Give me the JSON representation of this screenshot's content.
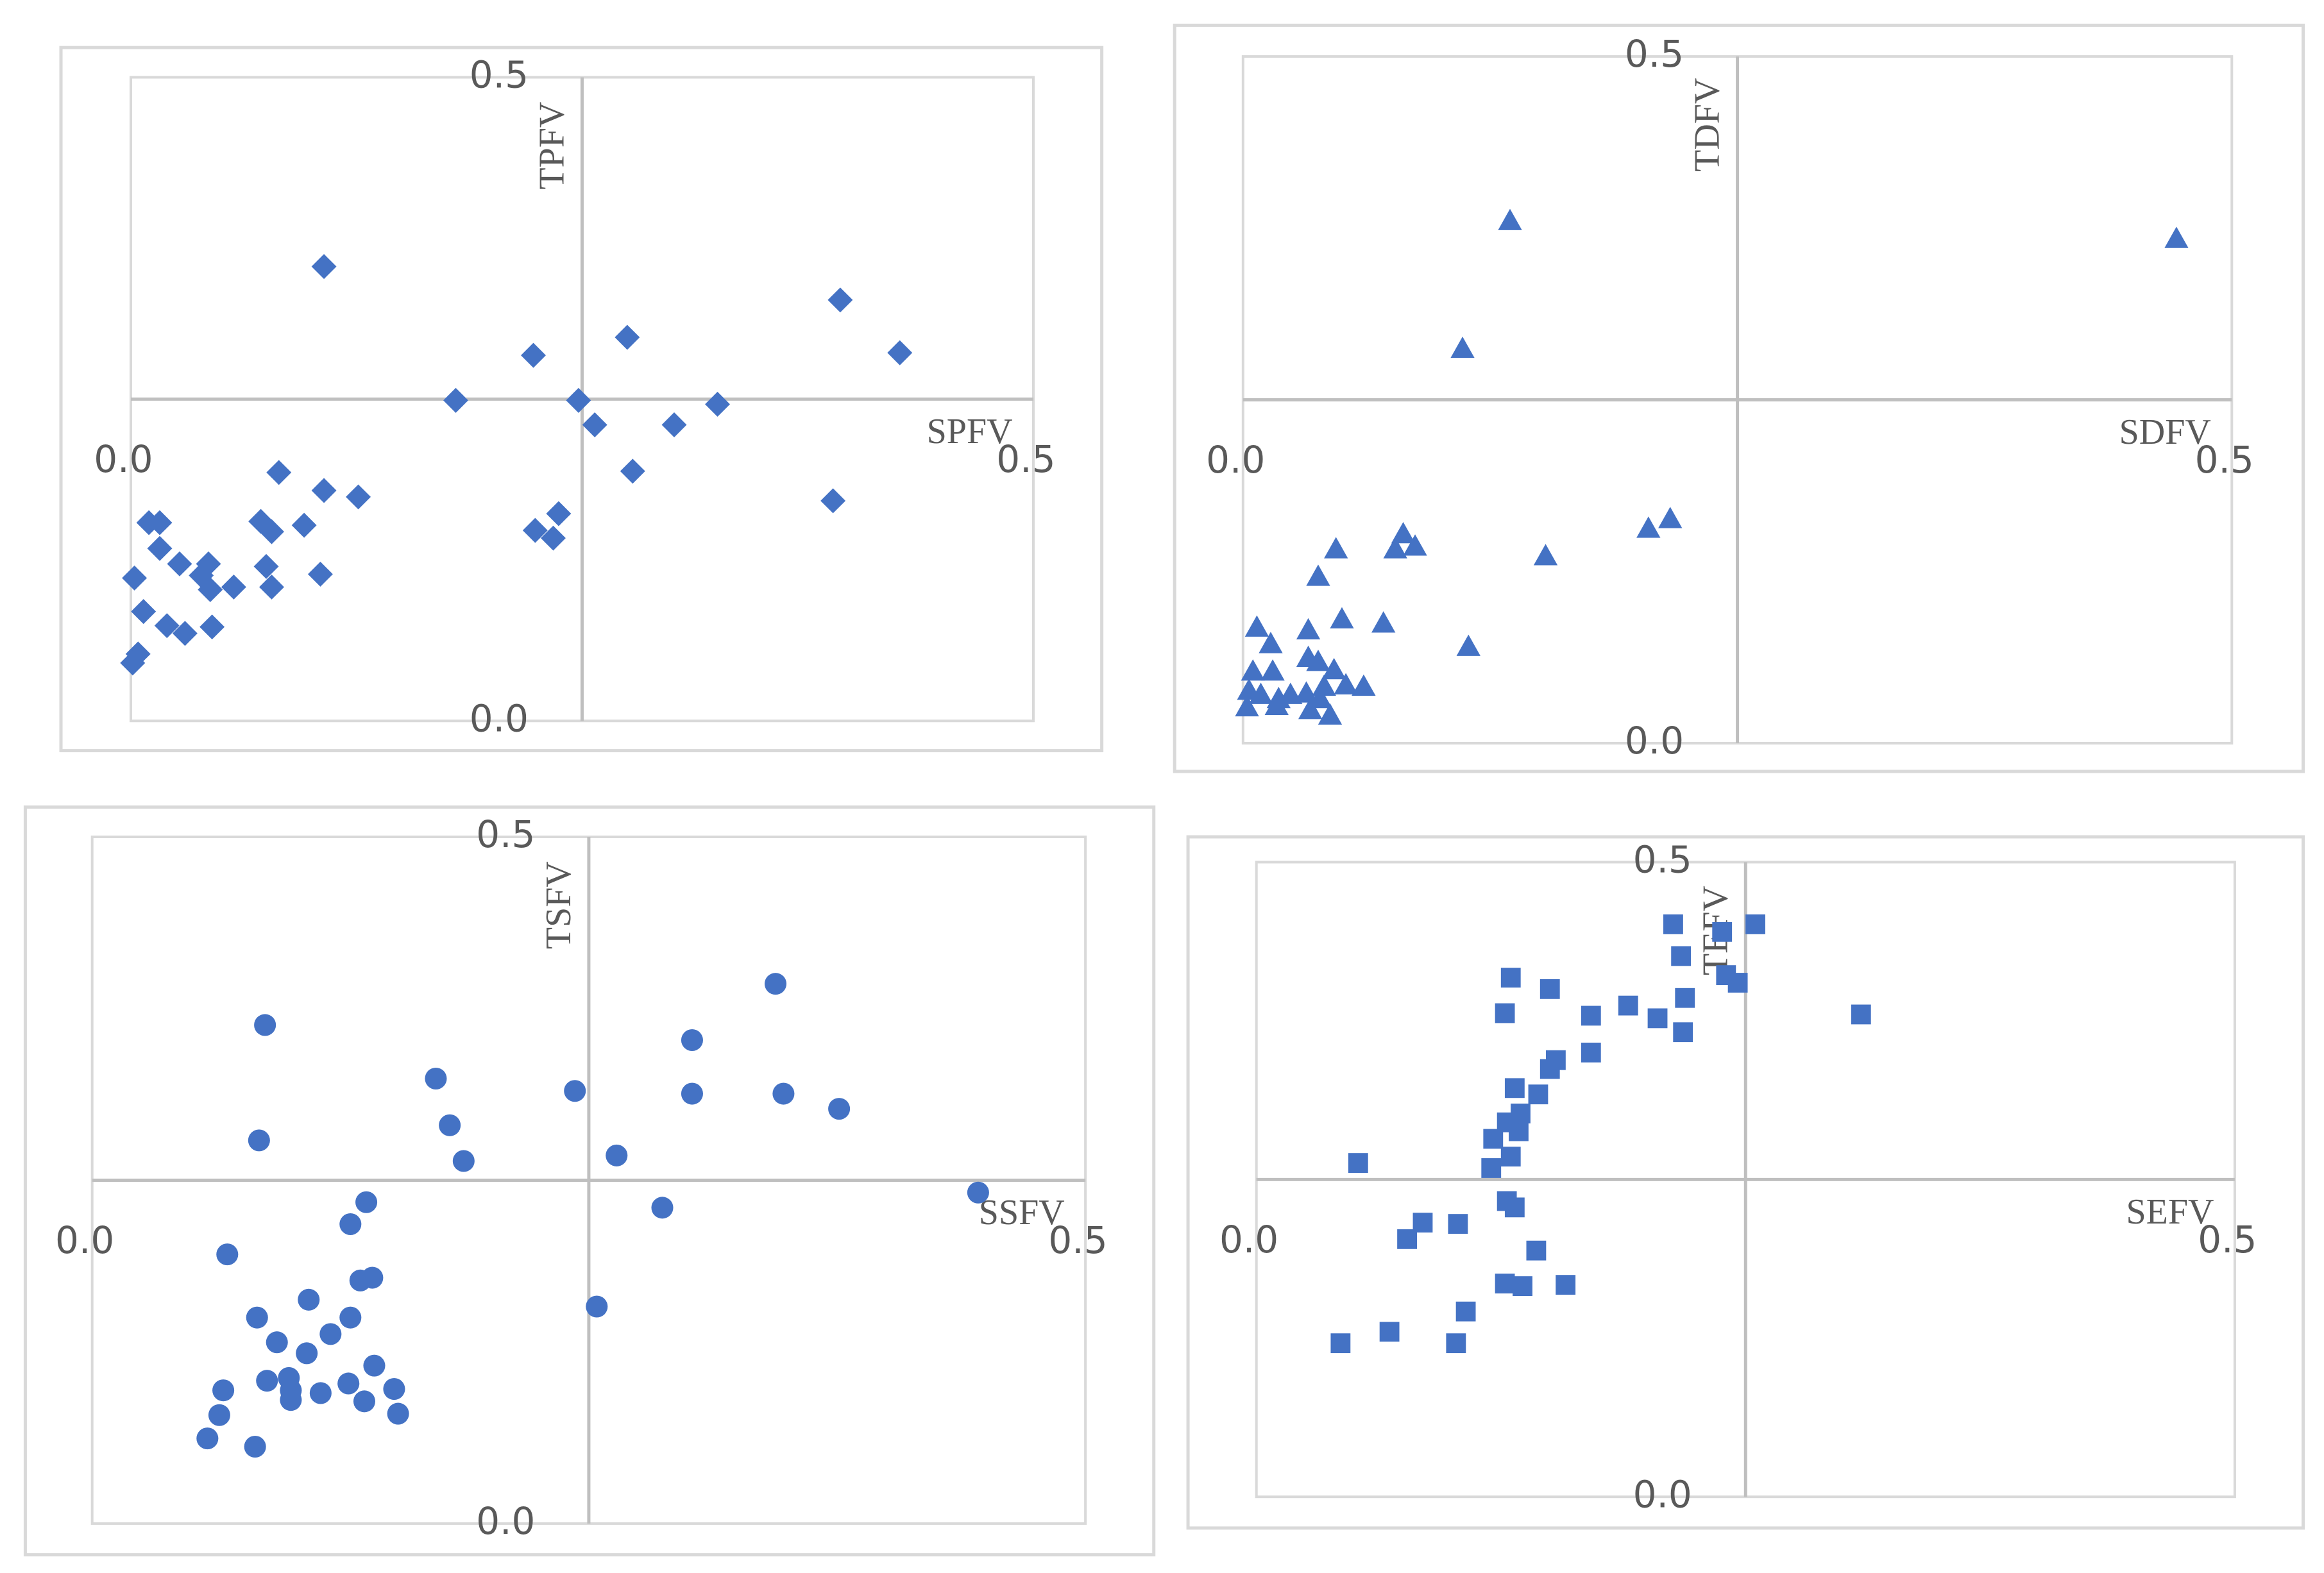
{
  "chart_data": [
    {
      "type": "scatter",
      "x_label": "SPFV",
      "y_label": "TPFV",
      "xlim": [
        0,
        0.5
      ],
      "ylim": [
        0,
        0.5
      ],
      "xticks": [
        {
          "value": 0,
          "label": "0.0"
        },
        {
          "value": 0.5,
          "label": "0.5"
        }
      ],
      "yticks": [
        {
          "value": 0,
          "label": "0.0"
        },
        {
          "value": 0.5,
          "label": "0.5"
        }
      ],
      "x_axis_crosses": 0.25,
      "y_axis_crosses": 0.25,
      "series": [
        {
          "color": "#4472c4",
          "marker": "diamond",
          "x": [
            0.107,
            0.393,
            0.426,
            0.275,
            0.223,
            0.18,
            0.248,
            0.257,
            0.301,
            0.325,
            0.278,
            0.389,
            0.082,
            0.107,
            0.126,
            0.096,
            0.072,
            0.078,
            0.01,
            0.016,
            0.016,
            0.027,
            0.043,
            0.039,
            0.044,
            0.057,
            0.075,
            0.078,
            0.105,
            0.002,
            0.007,
            0.02,
            0.03,
            0.045,
            0.004,
            0.001,
            0.224,
            0.237,
            0.234
          ],
          "y": [
            0.353,
            0.327,
            0.286,
            0.298,
            0.284,
            0.249,
            0.249,
            0.23,
            0.23,
            0.246,
            0.194,
            0.171,
            0.193,
            0.179,
            0.174,
            0.152,
            0.155,
            0.147,
            0.154,
            0.154,
            0.134,
            0.122,
            0.122,
            0.113,
            0.102,
            0.104,
            0.12,
            0.104,
            0.114,
            0.111,
            0.085,
            0.074,
            0.068,
            0.073,
            0.052,
            0.045,
            0.148,
            0.161,
            0.142
          ]
        }
      ]
    },
    {
      "type": "scatter",
      "x_label": "SDFV",
      "y_label": "TDFV",
      "xlim": [
        0,
        0.5
      ],
      "ylim": [
        0,
        0.5
      ],
      "xticks": [
        {
          "value": 0,
          "label": "0.0"
        },
        {
          "value": 0.5,
          "label": "0.5"
        }
      ],
      "yticks": [
        {
          "value": 0,
          "label": "0.0"
        },
        {
          "value": 0.5,
          "label": "0.5"
        }
      ],
      "x_axis_crosses": 0.25,
      "y_axis_crosses": 0.25,
      "series": [
        {
          "color": "#4472c4",
          "marker": "triangle",
          "x": [
            0.135,
            0.472,
            0.111,
            0.081,
            0.077,
            0.087,
            0.047,
            0.038,
            0.153,
            0.205,
            0.216,
            0.114,
            0.071,
            0.05,
            0.033,
            0.007,
            0.014,
            0.033,
            0.038,
            0.046,
            0.005,
            0.015,
            0.052,
            0.061,
            0.003,
            0.009,
            0.018,
            0.024,
            0.032,
            0.039,
            0.002,
            0.017,
            0.034,
            0.044,
            0.041
          ],
          "y": [
            0.38,
            0.367,
            0.287,
            0.152,
            0.141,
            0.143,
            0.141,
            0.121,
            0.136,
            0.156,
            0.163,
            0.07,
            0.087,
            0.09,
            0.082,
            0.084,
            0.072,
            0.062,
            0.059,
            0.053,
            0.052,
            0.052,
            0.042,
            0.041,
            0.038,
            0.035,
            0.032,
            0.035,
            0.036,
            0.032,
            0.026,
            0.027,
            0.024,
            0.02,
            0.041
          ]
        }
      ]
    },
    {
      "type": "scatter",
      "x_label": "SSFV",
      "y_label": "TSFV",
      "xlim": [
        0,
        0.5
      ],
      "ylim": [
        0,
        0.5
      ],
      "xticks": [
        {
          "value": 0,
          "label": "0.0"
        },
        {
          "value": 0.5,
          "label": "0.5"
        }
      ],
      "yticks": [
        {
          "value": 0,
          "label": "0.0"
        },
        {
          "value": 0.5,
          "label": "0.5"
        }
      ],
      "x_axis_crosses": 0.25,
      "y_axis_crosses": 0.25,
      "series": [
        {
          "color": "#4472c4",
          "marker": "circle",
          "x": [
            0.087,
            0.344,
            0.302,
            0.173,
            0.243,
            0.302,
            0.348,
            0.376,
            0.084,
            0.18,
            0.187,
            0.264,
            0.446,
            0.287,
            0.138,
            0.13,
            0.068,
            0.141,
            0.135,
            0.254,
            0.109,
            0.083,
            0.13,
            0.093,
            0.12,
            0.108,
            0.142,
            0.088,
            0.099,
            0.1,
            0.129,
            0.066,
            0.115,
            0.152,
            0.1,
            0.137,
            0.064,
            0.154,
            0.058,
            0.082
          ],
          "y": [
            0.363,
            0.393,
            0.352,
            0.324,
            0.315,
            0.313,
            0.313,
            0.302,
            0.279,
            0.29,
            0.264,
            0.268,
            0.241,
            0.23,
            0.234,
            0.218,
            0.196,
            0.179,
            0.177,
            0.158,
            0.163,
            0.15,
            0.15,
            0.132,
            0.138,
            0.124,
            0.115,
            0.104,
            0.106,
            0.097,
            0.102,
            0.097,
            0.095,
            0.098,
            0.09,
            0.089,
            0.079,
            0.08,
            0.062,
            0.056
          ]
        }
      ]
    },
    {
      "type": "scatter",
      "x_label": "SEFV",
      "y_label": "TEFV",
      "xlim": [
        0,
        0.5
      ],
      "ylim": [
        0,
        0.5
      ],
      "xticks": [
        {
          "value": 0,
          "label": "0.0"
        },
        {
          "value": 0.5,
          "label": "0.5"
        }
      ],
      "yticks": [
        {
          "value": 0,
          "label": "0.0"
        },
        {
          "value": 0.5,
          "label": "0.5"
        }
      ],
      "x_axis_crosses": 0.25,
      "y_axis_crosses": 0.25,
      "series": [
        {
          "color": "#4472c4",
          "marker": "square",
          "x": [
            0.213,
            0.255,
            0.238,
            0.217,
            0.24,
            0.246,
            0.13,
            0.15,
            0.219,
            0.19,
            0.127,
            0.171,
            0.205,
            0.309,
            0.218,
            0.171,
            0.153,
            0.15,
            0.132,
            0.144,
            0.135,
            0.128,
            0.134,
            0.121,
            0.13,
            0.12,
            0.052,
            0.128,
            0.132,
            0.085,
            0.103,
            0.077,
            0.143,
            0.127,
            0.136,
            0.158,
            0.107,
            0.068,
            0.043,
            0.102
          ],
          "y": [
            0.451,
            0.451,
            0.445,
            0.426,
            0.411,
            0.405,
            0.409,
            0.4,
            0.393,
            0.387,
            0.381,
            0.379,
            0.377,
            0.38,
            0.366,
            0.35,
            0.344,
            0.337,
            0.322,
            0.317,
            0.302,
            0.295,
            0.288,
            0.282,
            0.268,
            0.259,
            0.263,
            0.233,
            0.228,
            0.216,
            0.215,
            0.203,
            0.194,
            0.168,
            0.166,
            0.167,
            0.146,
            0.13,
            0.121,
            0.121
          ]
        }
      ]
    }
  ]
}
